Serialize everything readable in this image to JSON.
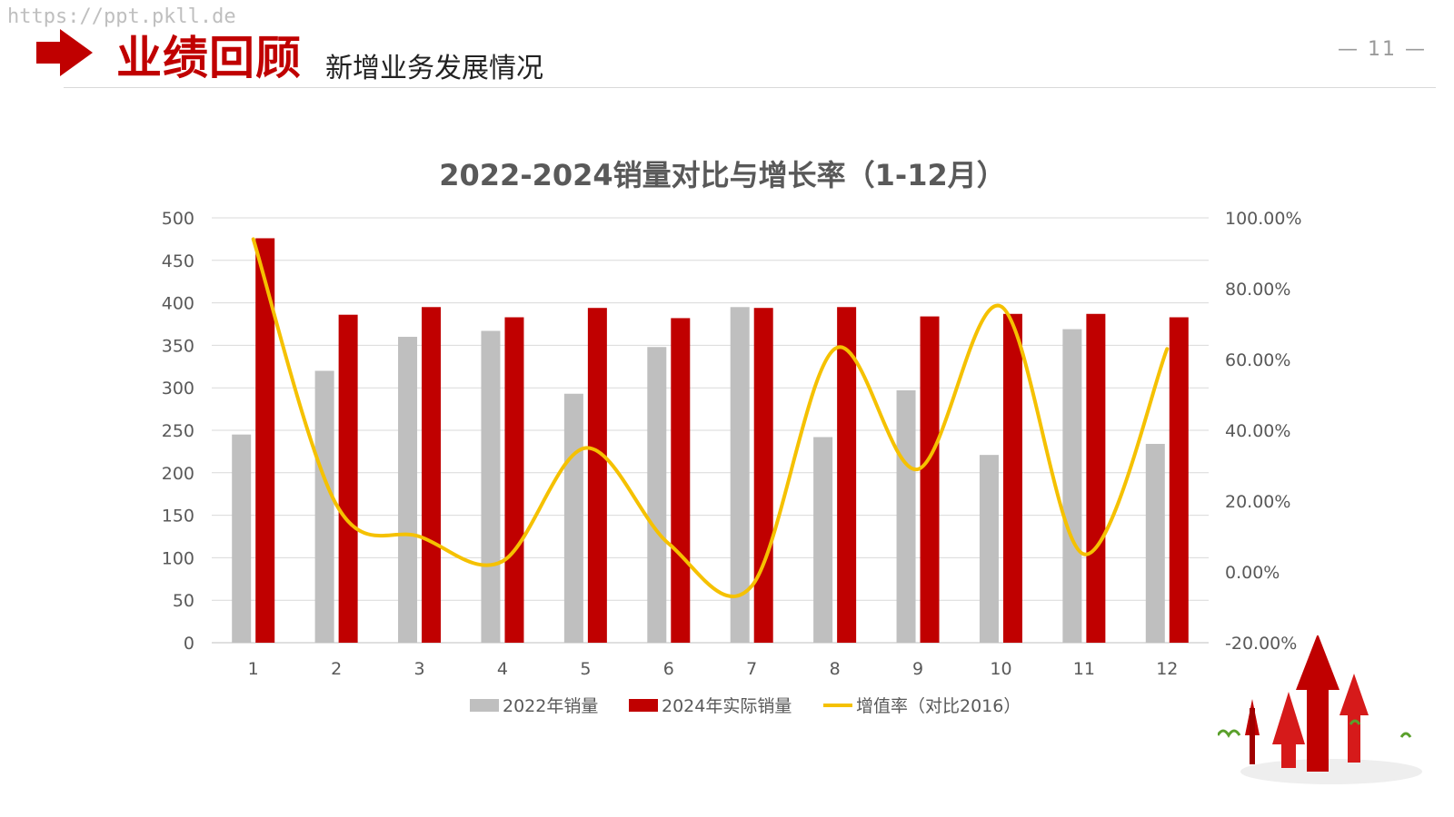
{
  "watermark": "https://ppt.pkll.de",
  "header": {
    "title": "业绩回顾",
    "subtitle": "新增业务发展情况",
    "page_number": "— 11 —"
  },
  "colors": {
    "accent": "#c00000",
    "bar2022": "#bfbfbf",
    "bar2024": "#c00000",
    "line": "#f5c100",
    "grid": "#d9d9d9",
    "text": "#595959"
  },
  "chart_data": {
    "type": "bar",
    "title": "2022-2024销量对比与增长率（1-12月）",
    "categories": [
      "1",
      "2",
      "3",
      "4",
      "5",
      "6",
      "7",
      "8",
      "9",
      "10",
      "11",
      "12"
    ],
    "ylim": [
      0,
      500
    ],
    "y_ticks": [
      "0",
      "50",
      "100",
      "150",
      "200",
      "250",
      "300",
      "350",
      "400",
      "450",
      "500"
    ],
    "y2lim": [
      -0.2,
      1.0
    ],
    "y2_ticks": [
      "-20.00%",
      "0.00%",
      "20.00%",
      "40.00%",
      "60.00%",
      "80.00%",
      "100.00%"
    ],
    "grid": true,
    "legend": "bottom",
    "series": [
      {
        "name": "2022年销量",
        "type": "bar",
        "values": [
          245,
          320,
          360,
          367,
          293,
          348,
          395,
          242,
          297,
          221,
          369,
          234
        ]
      },
      {
        "name": "2024年实际销量",
        "type": "bar",
        "values": [
          476,
          386,
          395,
          383,
          394,
          382,
          394,
          395,
          384,
          387,
          387,
          383
        ]
      },
      {
        "name": "增值率（对比2016）",
        "type": "line",
        "axis": "secondary",
        "values": [
          0.94,
          0.19,
          0.1,
          0.03,
          0.35,
          0.08,
          -0.04,
          0.63,
          0.29,
          0.75,
          0.05,
          0.63
        ]
      }
    ]
  }
}
